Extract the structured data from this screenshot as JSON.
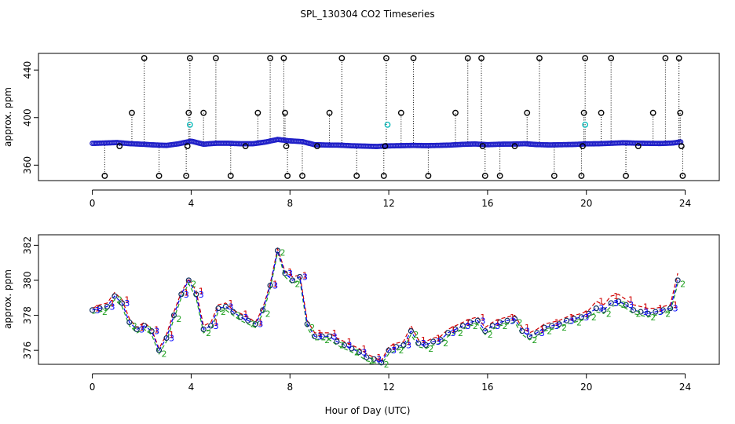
{
  "figure": {
    "title": "SPL_130304  CO2 Timeseries",
    "shared_xlabel": "Hour of Day (UTC)"
  },
  "colors": {
    "axis": "#000000",
    "marker_outlier": "#000000",
    "marker_main": "#2020c8",
    "marker_secondary": "#00b8b8",
    "series1": "#d00000",
    "series2": "#20a020",
    "series3": "#0000ff",
    "circles": "#103060"
  },
  "chart_data": [
    {
      "type": "scatter",
      "title": "SPL_130304  CO2 Timeseries",
      "xlabel": "",
      "ylabel": "approx. ppm",
      "xlim": [
        -1.8,
        25
      ],
      "ylim": [
        347,
        454
      ],
      "xticks": [
        0,
        4,
        8,
        12,
        16,
        20,
        24
      ],
      "yticks": [
        360,
        400,
        440
      ],
      "base_series": [
        {
          "x": 0.0,
          "y": 378.3
        },
        {
          "x": 0.5,
          "y": 378.6
        },
        {
          "x": 1.0,
          "y": 379.0
        },
        {
          "x": 1.5,
          "y": 378.1
        },
        {
          "x": 2.0,
          "y": 377.6
        },
        {
          "x": 2.5,
          "y": 377.0
        },
        {
          "x": 3.0,
          "y": 376.6
        },
        {
          "x": 3.5,
          "y": 378.0
        },
        {
          "x": 4.0,
          "y": 380.2
        },
        {
          "x": 4.5,
          "y": 377.6
        },
        {
          "x": 5.0,
          "y": 378.4
        },
        {
          "x": 5.5,
          "y": 378.4
        },
        {
          "x": 6.0,
          "y": 378.0
        },
        {
          "x": 6.5,
          "y": 378.0
        },
        {
          "x": 7.0,
          "y": 379.4
        },
        {
          "x": 7.5,
          "y": 381.6
        },
        {
          "x": 8.0,
          "y": 380.4
        },
        {
          "x": 8.5,
          "y": 379.8
        },
        {
          "x": 9.0,
          "y": 377.2
        },
        {
          "x": 9.5,
          "y": 376.9
        },
        {
          "x": 10.0,
          "y": 376.8
        },
        {
          "x": 10.5,
          "y": 376.3
        },
        {
          "x": 11.0,
          "y": 376.0
        },
        {
          "x": 11.5,
          "y": 375.7
        },
        {
          "x": 12.0,
          "y": 376.2
        },
        {
          "x": 12.5,
          "y": 376.4
        },
        {
          "x": 13.0,
          "y": 376.6
        },
        {
          "x": 13.5,
          "y": 376.4
        },
        {
          "x": 14.0,
          "y": 376.6
        },
        {
          "x": 14.5,
          "y": 376.9
        },
        {
          "x": 15.0,
          "y": 377.5
        },
        {
          "x": 15.5,
          "y": 377.8
        },
        {
          "x": 16.0,
          "y": 377.2
        },
        {
          "x": 16.5,
          "y": 377.6
        },
        {
          "x": 17.0,
          "y": 377.7
        },
        {
          "x": 17.5,
          "y": 378.0
        },
        {
          "x": 18.0,
          "y": 377.3
        },
        {
          "x": 18.5,
          "y": 377.0
        },
        {
          "x": 19.0,
          "y": 377.2
        },
        {
          "x": 19.5,
          "y": 377.4
        },
        {
          "x": 20.0,
          "y": 377.9
        },
        {
          "x": 20.5,
          "y": 378.0
        },
        {
          "x": 21.0,
          "y": 378.4
        },
        {
          "x": 21.5,
          "y": 378.8
        },
        {
          "x": 22.0,
          "y": 378.5
        },
        {
          "x": 22.5,
          "y": 378.3
        },
        {
          "x": 23.0,
          "y": 378.2
        },
        {
          "x": 23.5,
          "y": 378.6
        },
        {
          "x": 23.8,
          "y": 379.5
        }
      ],
      "outliers": [
        {
          "x": 0.5,
          "y": 351
        },
        {
          "x": 1.1,
          "y": 376
        },
        {
          "x": 1.6,
          "y": 404
        },
        {
          "x": 2.1,
          "y": 450
        },
        {
          "x": 2.7,
          "y": 351
        },
        {
          "x": 3.8,
          "y": 351
        },
        {
          "x": 3.85,
          "y": 376
        },
        {
          "x": 3.9,
          "y": 404
        },
        {
          "x": 3.95,
          "y": 450
        },
        {
          "x": 4.5,
          "y": 404
        },
        {
          "x": 5.0,
          "y": 450
        },
        {
          "x": 5.6,
          "y": 351
        },
        {
          "x": 6.2,
          "y": 376
        },
        {
          "x": 6.7,
          "y": 404
        },
        {
          "x": 7.2,
          "y": 450
        },
        {
          "x": 7.75,
          "y": 450
        },
        {
          "x": 7.8,
          "y": 404
        },
        {
          "x": 7.85,
          "y": 376
        },
        {
          "x": 7.9,
          "y": 351
        },
        {
          "x": 8.5,
          "y": 351
        },
        {
          "x": 9.1,
          "y": 376
        },
        {
          "x": 9.6,
          "y": 404
        },
        {
          "x": 10.1,
          "y": 450
        },
        {
          "x": 10.7,
          "y": 351
        },
        {
          "x": 11.8,
          "y": 351
        },
        {
          "x": 11.85,
          "y": 376
        },
        {
          "x": 11.9,
          "y": 450
        },
        {
          "x": 12.5,
          "y": 404
        },
        {
          "x": 13.0,
          "y": 450
        },
        {
          "x": 13.6,
          "y": 351
        },
        {
          "x": 14.7,
          "y": 404
        },
        {
          "x": 15.2,
          "y": 450
        },
        {
          "x": 15.75,
          "y": 450
        },
        {
          "x": 15.8,
          "y": 376
        },
        {
          "x": 15.9,
          "y": 351
        },
        {
          "x": 16.5,
          "y": 351
        },
        {
          "x": 17.1,
          "y": 376
        },
        {
          "x": 17.6,
          "y": 404
        },
        {
          "x": 18.1,
          "y": 450
        },
        {
          "x": 18.7,
          "y": 351
        },
        {
          "x": 19.8,
          "y": 351
        },
        {
          "x": 19.85,
          "y": 376
        },
        {
          "x": 19.9,
          "y": 404
        },
        {
          "x": 19.95,
          "y": 450
        },
        {
          "x": 20.6,
          "y": 404
        },
        {
          "x": 21.0,
          "y": 450
        },
        {
          "x": 21.6,
          "y": 351
        },
        {
          "x": 22.1,
          "y": 376
        },
        {
          "x": 22.7,
          "y": 404
        },
        {
          "x": 23.2,
          "y": 450
        },
        {
          "x": 23.75,
          "y": 450
        },
        {
          "x": 23.8,
          "y": 404
        },
        {
          "x": 23.85,
          "y": 376
        },
        {
          "x": 23.9,
          "y": 351
        }
      ],
      "secondary_points": [
        {
          "x": 3.95,
          "y": 394
        },
        {
          "x": 11.95,
          "y": 394
        },
        {
          "x": 19.95,
          "y": 394
        }
      ]
    },
    {
      "type": "line",
      "title": "",
      "xlabel": "Hour of Day (UTC)",
      "ylabel": "approx. ppm",
      "xlim": [
        -1.8,
        25
      ],
      "ylim": [
        375.2,
        382.6
      ],
      "xticks": [
        0,
        4,
        8,
        12,
        16,
        20,
        24
      ],
      "yticks": [
        376,
        378,
        380,
        382
      ],
      "series_names": [
        "1",
        "2",
        "3"
      ],
      "x": [
        0.0,
        0.3,
        0.6,
        0.9,
        1.2,
        1.5,
        1.8,
        2.1,
        2.4,
        2.7,
        3.0,
        3.3,
        3.6,
        3.9,
        4.2,
        4.5,
        4.8,
        5.1,
        5.4,
        5.7,
        6.0,
        6.3,
        6.6,
        6.9,
        7.2,
        7.5,
        7.8,
        8.1,
        8.4,
        8.7,
        9.0,
        9.3,
        9.6,
        9.9,
        10.2,
        10.5,
        10.8,
        11.1,
        11.4,
        11.7,
        12.0,
        12.3,
        12.6,
        12.9,
        13.2,
        13.5,
        13.8,
        14.1,
        14.4,
        14.7,
        15.0,
        15.3,
        15.6,
        15.9,
        16.2,
        16.5,
        16.8,
        17.1,
        17.4,
        17.7,
        18.0,
        18.3,
        18.6,
        18.9,
        19.2,
        19.5,
        19.8,
        20.1,
        20.4,
        20.7,
        21.0,
        21.3,
        21.6,
        21.9,
        22.2,
        22.5,
        22.8,
        23.1,
        23.4,
        23.7
      ],
      "series": [
        {
          "name": "1",
          "values": [
            378.4,
            378.6,
            378.7,
            379.3,
            378.9,
            377.8,
            377.3,
            377.6,
            377.2,
            376.1,
            376.9,
            378.2,
            379.3,
            380.1,
            379.4,
            377.4,
            377.6,
            378.6,
            378.7,
            378.3,
            378.1,
            377.9,
            377.6,
            378.4,
            379.8,
            381.8,
            380.5,
            380.2,
            380.3,
            377.7,
            377.0,
            377.0,
            377.0,
            376.7,
            376.5,
            376.3,
            376.1,
            375.8,
            375.6,
            375.4,
            376.2,
            376.4,
            376.5,
            377.4,
            376.6,
            376.5,
            376.7,
            376.8,
            377.2,
            377.4,
            377.6,
            377.8,
            377.9,
            377.3,
            377.6,
            377.8,
            377.9,
            378.0,
            377.3,
            377.0,
            377.2,
            377.5,
            377.6,
            377.7,
            377.9,
            378.0,
            378.1,
            378.3,
            378.8,
            378.6,
            379.1,
            379.2,
            378.9,
            378.6,
            378.5,
            378.4,
            378.4,
            378.5,
            378.6,
            380.4
          ]
        },
        {
          "name": "2",
          "values": [
            378.1,
            378.2,
            378.3,
            378.9,
            378.5,
            377.4,
            377.0,
            377.2,
            376.9,
            375.8,
            376.5,
            377.8,
            379.0,
            379.8,
            379.0,
            377.0,
            377.2,
            378.2,
            378.3,
            378.0,
            377.7,
            377.5,
            377.3,
            378.1,
            379.5,
            381.6,
            380.2,
            379.8,
            380.0,
            377.3,
            376.6,
            376.6,
            376.6,
            376.3,
            376.1,
            375.9,
            375.7,
            375.4,
            375.3,
            375.2,
            375.8,
            376.0,
            376.1,
            376.9,
            376.2,
            376.1,
            376.3,
            376.4,
            376.8,
            377.0,
            377.2,
            377.4,
            377.5,
            376.9,
            377.2,
            377.4,
            377.5,
            377.6,
            376.9,
            376.6,
            376.8,
            377.1,
            377.2,
            377.3,
            377.5,
            377.6,
            377.7,
            377.9,
            378.2,
            378.1,
            378.5,
            378.6,
            378.4,
            378.1,
            378.0,
            377.9,
            378.0,
            378.1,
            378.2,
            379.8
          ]
        },
        {
          "name": "3",
          "values": [
            378.3,
            378.4,
            378.5,
            379.1,
            378.7,
            377.6,
            377.2,
            377.4,
            377.1,
            376.0,
            376.7,
            378.0,
            379.2,
            380.0,
            379.2,
            377.2,
            377.4,
            378.4,
            378.5,
            378.2,
            377.9,
            377.7,
            377.5,
            378.3,
            379.7,
            381.7,
            380.4,
            380.0,
            380.2,
            377.5,
            376.8,
            376.8,
            376.8,
            376.5,
            376.3,
            376.1,
            375.9,
            375.6,
            375.5,
            375.3,
            376.0,
            376.2,
            376.3,
            377.1,
            376.4,
            376.3,
            376.5,
            376.6,
            377.0,
            377.2,
            377.4,
            377.6,
            377.7,
            377.1,
            377.4,
            377.6,
            377.7,
            377.8,
            377.1,
            376.8,
            377.0,
            377.3,
            377.4,
            377.5,
            377.7,
            377.8,
            377.9,
            378.1,
            378.4,
            378.3,
            378.7,
            378.8,
            378.6,
            378.3,
            378.2,
            378.1,
            378.2,
            378.3,
            378.4,
            380.0
          ]
        }
      ]
    }
  ]
}
